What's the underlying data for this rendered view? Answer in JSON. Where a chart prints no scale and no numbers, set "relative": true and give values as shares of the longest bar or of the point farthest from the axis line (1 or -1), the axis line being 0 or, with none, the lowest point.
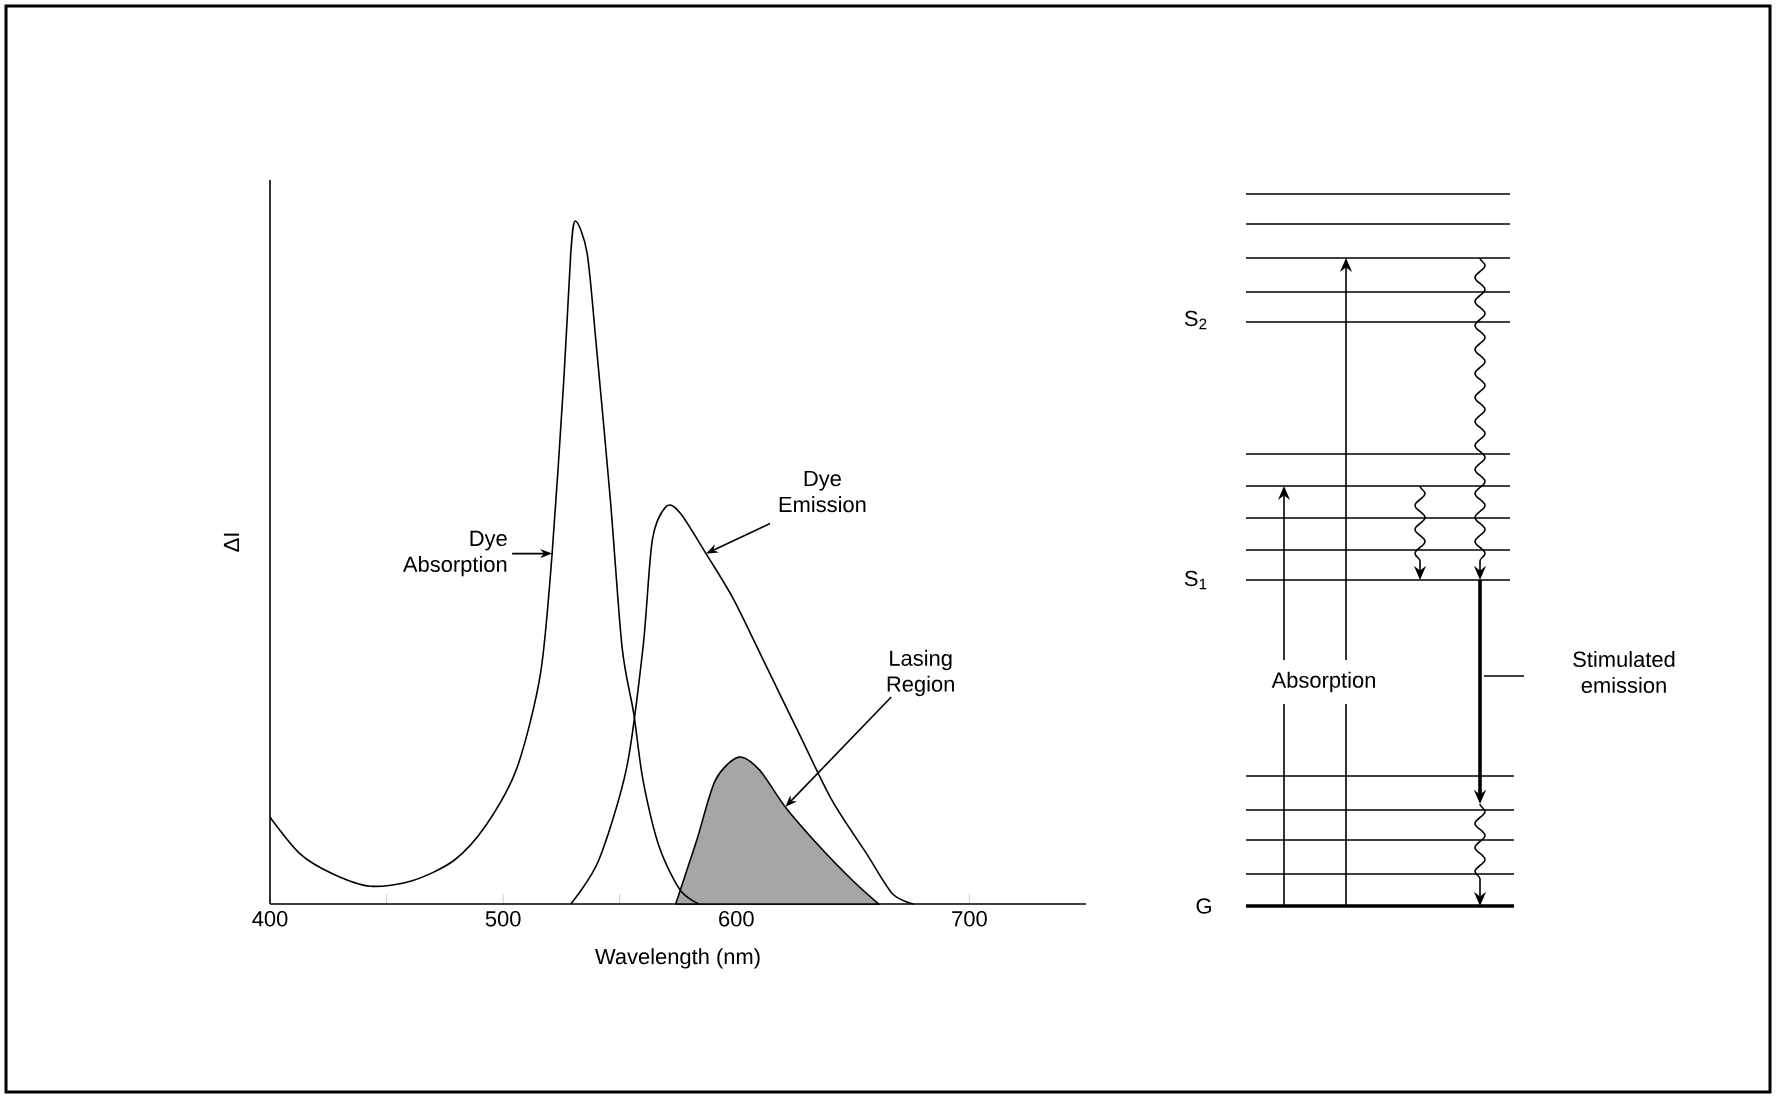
{
  "chart_data": [
    {
      "type": "line",
      "relative": true,
      "xlabel": "Wavelength (nm)",
      "ylabel": "ΔI",
      "xlim": [
        400,
        750
      ],
      "xticks": [
        400,
        {
          "value": 450,
          "label": null
        },
        500,
        {
          "value": 550,
          "label": null
        },
        600,
        {
          "value": 650,
          "label": null
        },
        700
      ],
      "series": [
        {
          "color": "#000000",
          "x": [
            400,
            413,
            427,
            443,
            461,
            479,
            493,
            506,
            516,
            521,
            526,
            529,
            531,
            536,
            540,
            546,
            551,
            556,
            560,
            567,
            576,
            584
          ],
          "values": [
            0.127,
            0.073,
            0.044,
            0.026,
            0.034,
            0.064,
            0.117,
            0.2,
            0.337,
            0.513,
            0.767,
            0.953,
            1.0,
            0.953,
            0.816,
            0.591,
            0.376,
            0.279,
            0.181,
            0.083,
            0.02,
            0
          ]
        },
        {
          "color": "#000000",
          "x": [
            529,
            541,
            553,
            560,
            564,
            570,
            576,
            587,
            599,
            613,
            627,
            641,
            656,
            667,
            676
          ],
          "values": [
            0,
            0.064,
            0.2,
            0.376,
            0.533,
            0.582,
            0.572,
            0.513,
            0.445,
            0.347,
            0.249,
            0.152,
            0.073,
            0.015,
            0
          ]
        },
        {
          "type": "area",
          "color": "#a6a6a6",
          "x": [
            574,
            583,
            591,
            601,
            610,
            621,
            636,
            650,
            661
          ],
          "values": [
            0,
            0.093,
            0.181,
            0.215,
            0.196,
            0.142,
            0.083,
            0.034,
            0
          ]
        }
      ],
      "annotations": [
        {
          "text": "Dye Absorption",
          "x": 521,
          "y": 0.513
        },
        {
          "text": "Dye Emission",
          "x": 587,
          "y": 0.513
        },
        {
          "text": "Lasing Region",
          "x": 621,
          "y": 0.142
        }
      ]
    },
    {
      "type": "other",
      "annotations": [
        "S$_{2}$",
        "S$_{1}$",
        "G",
        "Absorption",
        "Stimulated emission"
      ]
    }
  ]
}
